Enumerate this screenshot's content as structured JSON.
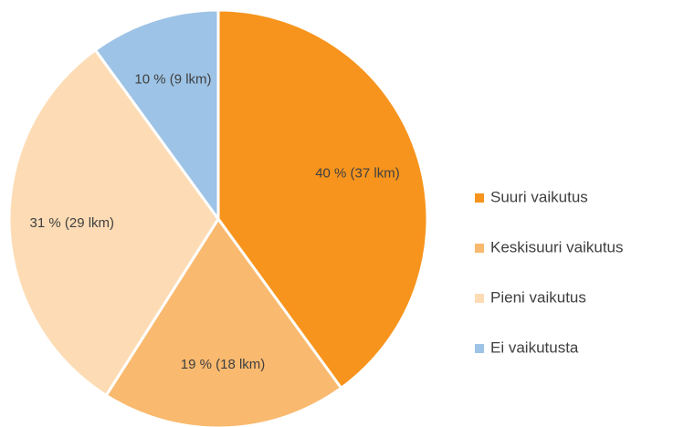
{
  "chart_data": {
    "type": "pie",
    "categories": [
      "Suuri vaikutus",
      "Keskisuuri vaikutus",
      "Pieni vaikutus",
      "Ei vaikutusta"
    ],
    "values": [
      40,
      19,
      31,
      10
    ],
    "value_labels": [
      "40 % (37 lkm)",
      "19 % (18 lkm)",
      "31 % (29 lkm)",
      "10 % (9 lkm)"
    ],
    "colors": [
      "#f7941d",
      "#f9b96e",
      "#fddcb5",
      "#9dc3e6"
    ],
    "legend": "right"
  }
}
